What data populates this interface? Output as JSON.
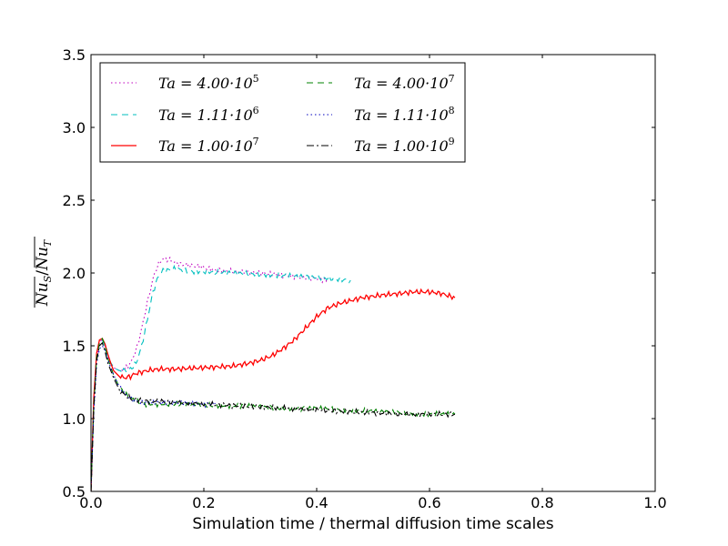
{
  "chart_data": {
    "type": "line",
    "title": "",
    "xlabel": "Simulation time / thermal diffusion time scales",
    "ylabel": "Nu_S / Nu_T",
    "ylabel_parts": {
      "num": "Nu",
      "num_sub": "S",
      "sep": "/",
      "den": "Nu",
      "den_sub": "T"
    },
    "xlim": [
      0.0,
      1.0
    ],
    "ylim": [
      0.5,
      3.5
    ],
    "xticks": [
      "0.0",
      "0.2",
      "0.4",
      "0.6",
      "0.8",
      "1.0"
    ],
    "yticks": [
      "0.5",
      "1.0",
      "1.5",
      "2.0",
      "2.5",
      "3.0",
      "3.5"
    ],
    "legend_position": "top-left",
    "series": [
      {
        "name": "Ta=4.00·10^5",
        "label_main": "Ta = 4.00·10",
        "label_exp": "5",
        "color": "#bf00bf",
        "dash": "1.5,3",
        "x": [
          0.0,
          0.005,
          0.01,
          0.015,
          0.02,
          0.025,
          0.03,
          0.04,
          0.05,
          0.06,
          0.07,
          0.08,
          0.09,
          0.1,
          0.105,
          0.11,
          0.115,
          0.12,
          0.125,
          0.13,
          0.14,
          0.15,
          0.16,
          0.18,
          0.2,
          0.22,
          0.25,
          0.3,
          0.35,
          0.4,
          0.42
        ],
        "y": [
          0.5,
          1.1,
          1.42,
          1.53,
          1.54,
          1.5,
          1.42,
          1.35,
          1.33,
          1.34,
          1.38,
          1.47,
          1.62,
          1.8,
          1.88,
          1.96,
          2.02,
          2.06,
          2.09,
          2.1,
          2.09,
          2.07,
          2.06,
          2.05,
          2.04,
          2.02,
          2.01,
          2.0,
          1.98,
          1.96,
          1.95
        ]
      },
      {
        "name": "Ta=1.11·10^6",
        "label_main": "Ta = 1.11·10",
        "label_exp": "6",
        "color": "#00bfbf",
        "dash": "7,5",
        "x": [
          0.0,
          0.005,
          0.01,
          0.015,
          0.02,
          0.025,
          0.03,
          0.04,
          0.05,
          0.06,
          0.07,
          0.08,
          0.09,
          0.1,
          0.105,
          0.11,
          0.115,
          0.12,
          0.125,
          0.13,
          0.14,
          0.15,
          0.16,
          0.18,
          0.2,
          0.25,
          0.3,
          0.35,
          0.4,
          0.43,
          0.46
        ],
        "y": [
          0.5,
          1.12,
          1.44,
          1.52,
          1.54,
          1.49,
          1.42,
          1.35,
          1.33,
          1.33,
          1.34,
          1.38,
          1.5,
          1.68,
          1.78,
          1.87,
          1.93,
          1.98,
          2.01,
          2.02,
          2.02,
          2.03,
          2.02,
          2.01,
          2.01,
          2.0,
          1.99,
          1.98,
          1.97,
          1.96,
          1.95
        ]
      },
      {
        "name": "Ta=1.00·10^7",
        "label_main": "Ta = 1.00·10",
        "label_exp": "7",
        "color": "#ff0000",
        "dash": "",
        "x": [
          0.0,
          0.005,
          0.01,
          0.015,
          0.02,
          0.025,
          0.03,
          0.035,
          0.04,
          0.05,
          0.06,
          0.07,
          0.08,
          0.1,
          0.12,
          0.15,
          0.2,
          0.25,
          0.28,
          0.3,
          0.32,
          0.34,
          0.36,
          0.38,
          0.4,
          0.42,
          0.44,
          0.46,
          0.48,
          0.5,
          0.52,
          0.55,
          0.57,
          0.6,
          0.62,
          0.645
        ],
        "y": [
          0.5,
          1.15,
          1.45,
          1.54,
          1.55,
          1.51,
          1.44,
          1.38,
          1.33,
          1.29,
          1.28,
          1.29,
          1.31,
          1.33,
          1.34,
          1.34,
          1.35,
          1.36,
          1.38,
          1.4,
          1.43,
          1.48,
          1.54,
          1.62,
          1.7,
          1.76,
          1.79,
          1.81,
          1.83,
          1.84,
          1.85,
          1.86,
          1.87,
          1.87,
          1.86,
          1.83
        ]
      },
      {
        "name": "Ta=4.00·10^7",
        "label_main": "Ta = 4.00·10",
        "label_exp": "7",
        "color": "#008000",
        "dash": "7,5",
        "x": [
          0.0,
          0.005,
          0.01,
          0.015,
          0.02,
          0.025,
          0.03,
          0.04,
          0.05,
          0.06,
          0.07,
          0.08,
          0.09,
          0.1,
          0.12,
          0.15,
          0.2,
          0.25,
          0.3,
          0.35,
          0.4,
          0.45,
          0.5,
          0.55,
          0.6,
          0.645
        ],
        "y": [
          0.5,
          1.1,
          1.42,
          1.52,
          1.55,
          1.5,
          1.41,
          1.3,
          1.22,
          1.17,
          1.14,
          1.12,
          1.1,
          1.1,
          1.1,
          1.1,
          1.09,
          1.09,
          1.08,
          1.07,
          1.07,
          1.06,
          1.05,
          1.04,
          1.03,
          1.03
        ]
      },
      {
        "name": "Ta=1.11·10^8",
        "label_main": "Ta = 1.11·10",
        "label_exp": "8",
        "color": "#0000bf",
        "dash": "1.5,3",
        "x": [
          0.0,
          0.005,
          0.01,
          0.015,
          0.02,
          0.025,
          0.03,
          0.04,
          0.05,
          0.06,
          0.07,
          0.08,
          0.09,
          0.1,
          0.12,
          0.15,
          0.2,
          0.22
        ],
        "y": [
          0.5,
          1.05,
          1.38,
          1.48,
          1.5,
          1.47,
          1.4,
          1.3,
          1.22,
          1.17,
          1.14,
          1.12,
          1.11,
          1.11,
          1.11,
          1.11,
          1.1,
          1.1
        ]
      },
      {
        "name": "Ta=1.00·10^9",
        "label_main": "Ta = 1.00·10",
        "label_exp": "9",
        "color": "#000000",
        "dash": "8,3,2,3",
        "x": [
          0.0,
          0.005,
          0.01,
          0.015,
          0.02,
          0.025,
          0.03,
          0.04,
          0.05,
          0.06,
          0.07,
          0.08,
          0.09,
          0.1,
          0.12,
          0.15,
          0.2,
          0.25,
          0.3,
          0.35,
          0.4,
          0.45,
          0.5,
          0.55,
          0.6,
          0.645
        ],
        "y": [
          0.5,
          1.08,
          1.4,
          1.5,
          1.52,
          1.46,
          1.38,
          1.28,
          1.2,
          1.16,
          1.14,
          1.13,
          1.12,
          1.12,
          1.12,
          1.11,
          1.1,
          1.09,
          1.08,
          1.07,
          1.06,
          1.05,
          1.04,
          1.03,
          1.03,
          1.03
        ]
      }
    ]
  }
}
